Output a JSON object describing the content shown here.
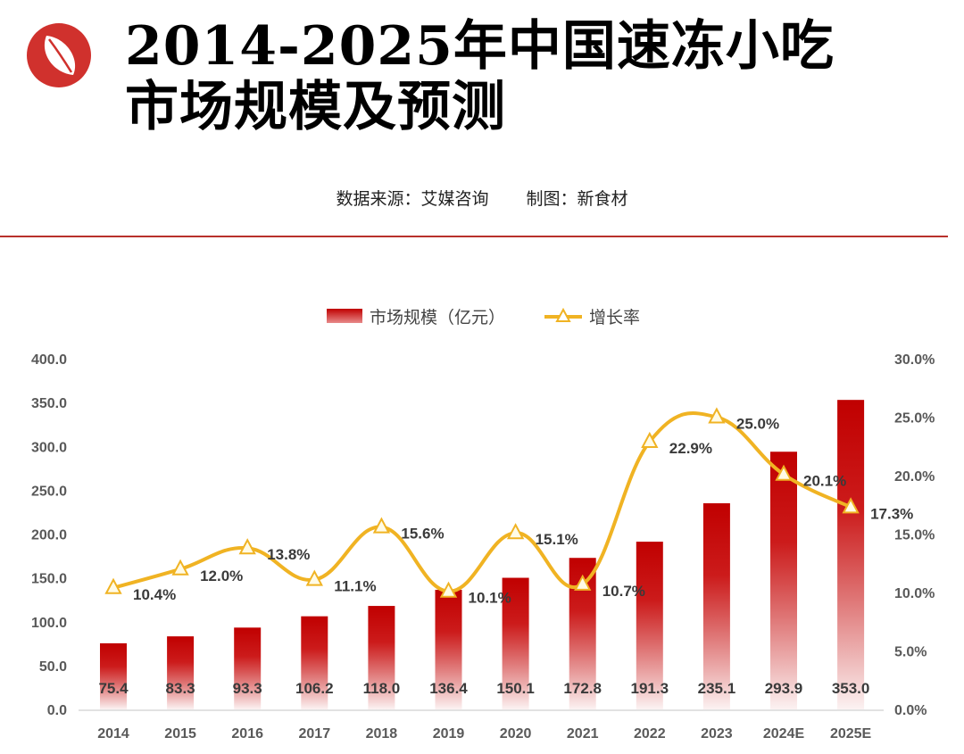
{
  "header": {
    "title_line1": "2014-2025年中国速冻小吃",
    "title_line2": "市场规模及预测",
    "source": "数据来源：艾媒咨询",
    "credit": "制图：新食材"
  },
  "colors": {
    "bar_top": "#c00000",
    "line": "#f0b323",
    "brand_red": "#d0312d"
  },
  "chart_data": {
    "type": "bar",
    "title": "2014-2025年中国速冻小吃市场规模及预测",
    "categories": [
      "2014",
      "2015",
      "2016",
      "2017",
      "2018",
      "2019",
      "2020",
      "2021",
      "2022",
      "2023",
      "2024E",
      "2025E"
    ],
    "series": [
      {
        "name": "市场规模（亿元）",
        "type": "bar",
        "axis": "left",
        "values": [
          75.4,
          83.3,
          93.3,
          106.2,
          118.0,
          136.4,
          150.1,
          172.8,
          191.3,
          235.1,
          293.9,
          353.0
        ],
        "labels": [
          "75.4",
          "83.3",
          "93.3",
          "106.2",
          "118.0",
          "136.4",
          "150.1",
          "172.8",
          "191.3",
          "235.1",
          "293.9",
          "353.0"
        ]
      },
      {
        "name": "增长率",
        "type": "line",
        "axis": "right",
        "values": [
          10.4,
          12.0,
          13.8,
          11.1,
          15.6,
          10.1,
          15.1,
          10.7,
          22.9,
          25.0,
          20.1,
          17.3
        ],
        "labels": [
          "10.4%",
          "12.0%",
          "13.8%",
          "11.1%",
          "15.6%",
          "10.1%",
          "15.1%",
          "10.7%",
          "22.9%",
          "25.0%",
          "20.1%",
          "17.3%"
        ]
      }
    ],
    "y_left": {
      "range": [
        0,
        400
      ],
      "ticks": [
        "0.0",
        "50.0",
        "100.0",
        "150.0",
        "200.0",
        "250.0",
        "300.0",
        "350.0",
        "400.0"
      ]
    },
    "y_right": {
      "range": [
        0,
        30
      ],
      "ticks": [
        "0.0%",
        "5.0%",
        "10.0%",
        "15.0%",
        "20.0%",
        "25.0%",
        "30.0%"
      ]
    },
    "legend": {
      "position": "top-center",
      "items": [
        "市场规模（亿元）",
        "增长率"
      ]
    },
    "grid": false
  }
}
